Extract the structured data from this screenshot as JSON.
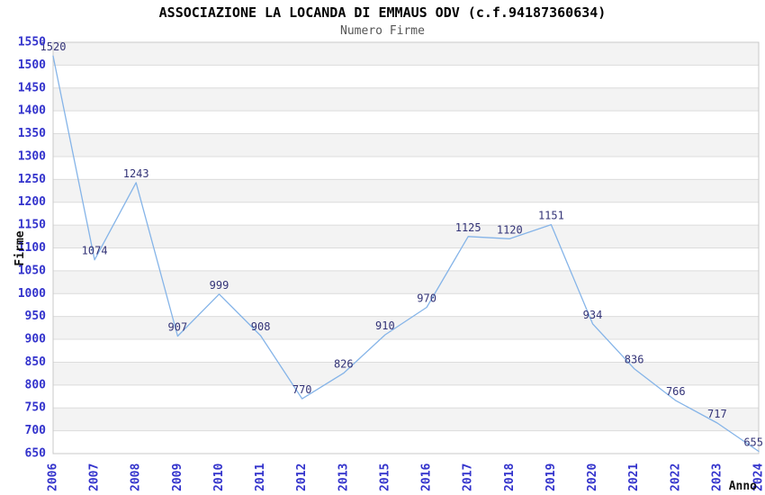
{
  "chart_data": {
    "type": "line",
    "title": "ASSOCIAZIONE LA LOCANDA DI EMMAUS ODV (c.f.94187360634)",
    "subtitle": "Numero Firme",
    "xlabel": "Anno",
    "ylabel": "Firme",
    "categories": [
      "2006",
      "2007",
      "2008",
      "2009",
      "2010",
      "2011",
      "2012",
      "2013",
      "2015",
      "2016",
      "2017",
      "2018",
      "2019",
      "2020",
      "2021",
      "2022",
      "2023",
      "2024"
    ],
    "values": [
      1520,
      1074,
      1243,
      907,
      999,
      908,
      770,
      826,
      910,
      970,
      1125,
      1120,
      1151,
      934,
      836,
      766,
      717,
      655
    ],
    "ylim": [
      650,
      1550
    ],
    "ytick_step": 50,
    "grid": true,
    "legend": "none",
    "point_markers": false,
    "banded_background": true,
    "colors": {
      "line": "#85B4E8",
      "axis_tick_label": "#3333CC",
      "value_label": "#333377",
      "band": "#F3F3F3",
      "gridline": "#DCDCDC",
      "plot_border": "#C8C8C8",
      "title": "#000000",
      "subtitle": "#555555",
      "axis_title": "#111111",
      "background": "#FFFFFF"
    }
  }
}
